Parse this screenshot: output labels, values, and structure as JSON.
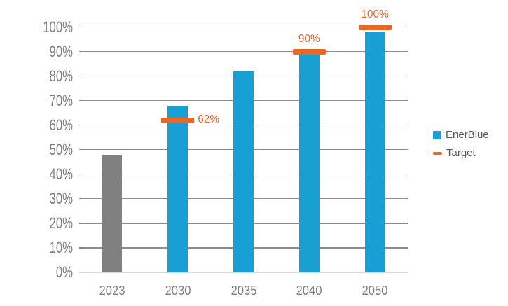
{
  "colors": {
    "bar_blue": "#18A0D4",
    "bar_gray": "#808080",
    "target_orange": "#E8682A",
    "gridline": "#8C8C8C",
    "axis_line": "#D9D9D9",
    "tick_label": "#7F7F7F",
    "legend_text": "#595959",
    "background": "#FFFFFF"
  },
  "chart_data": {
    "type": "bar",
    "title": "",
    "xlabel": "",
    "ylabel": "",
    "categories": [
      "2023",
      "2030",
      "2035",
      "2040",
      "2050"
    ],
    "series": [
      {
        "name": "EnerBlue",
        "values": [
          48,
          68,
          82,
          89,
          98
        ]
      }
    ],
    "bar_colors": [
      "#808080",
      "#18A0D4",
      "#18A0D4",
      "#18A0D4",
      "#18A0D4"
    ],
    "targets": [
      {
        "category": "2030",
        "value": 62,
        "label": "62%",
        "label_placement": "right"
      },
      {
        "category": "2040",
        "value": 90,
        "label": "90%",
        "label_placement": "above"
      },
      {
        "category": "2050",
        "value": 100,
        "label": "100%",
        "label_placement": "above"
      }
    ],
    "ylim": [
      0,
      100
    ],
    "ytick_step": 10,
    "ytick_labels": [
      "0%",
      "10%",
      "20%",
      "30%",
      "40%",
      "50%",
      "60%",
      "70%",
      "80%",
      "90%",
      "100%"
    ],
    "grid": true,
    "legend_position": "right-middle"
  },
  "legend": {
    "items": [
      {
        "id": "enerblue",
        "label": "EnerBlue",
        "swatch": "square",
        "color": "#18A0D4"
      },
      {
        "id": "target",
        "label": "Target",
        "swatch": "dash",
        "color": "#E8682A"
      }
    ]
  }
}
